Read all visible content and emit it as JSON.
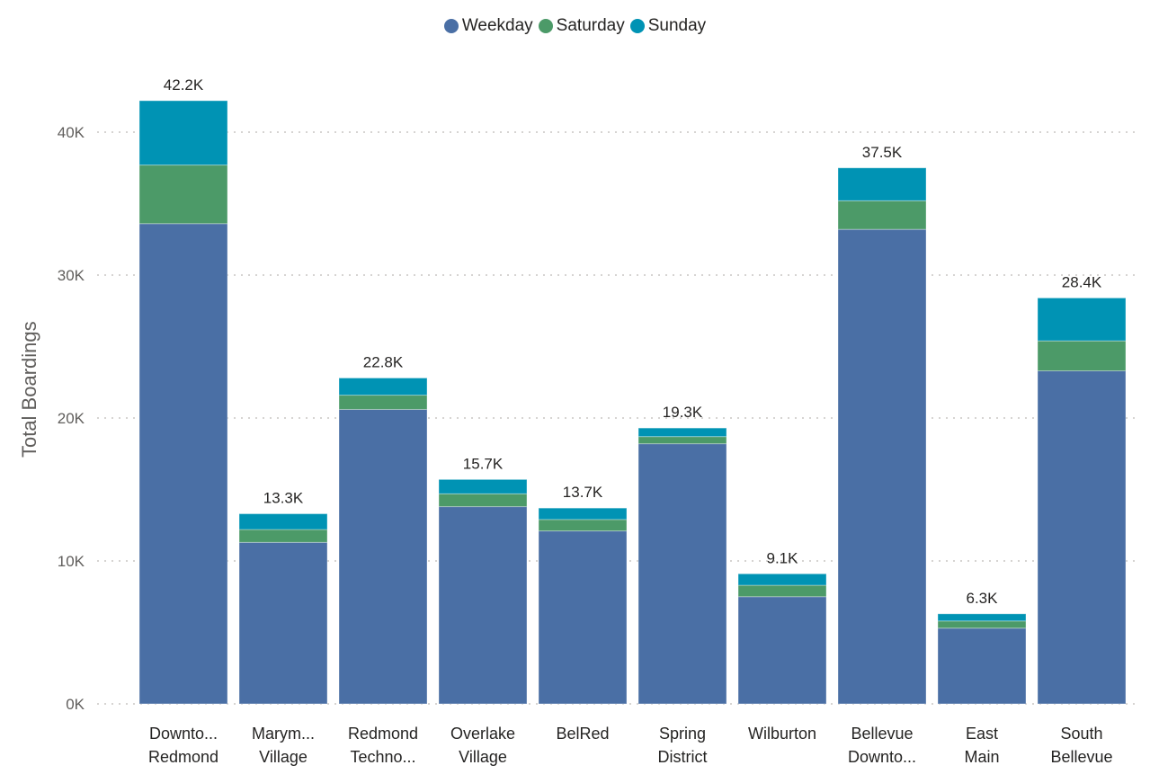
{
  "chart_data": {
    "type": "bar",
    "stacked": true,
    "title": "",
    "xlabel": "",
    "ylabel": "Total Boardings",
    "ylim": [
      0,
      44000
    ],
    "yticks": [
      0,
      10000,
      20000,
      30000,
      40000
    ],
    "ytick_labels": [
      "0K",
      "10K",
      "20K",
      "30K",
      "40K"
    ],
    "grid": true,
    "legend_position": "top-center",
    "categories": [
      [
        "Downto...",
        "Redmond"
      ],
      [
        "Marym...",
        "Village"
      ],
      [
        "Redmond",
        "Techno..."
      ],
      [
        "Overlake",
        "Village"
      ],
      [
        "BelRed"
      ],
      [
        "Spring",
        "District"
      ],
      [
        "Wilburton"
      ],
      [
        "Bellevue",
        "Downto..."
      ],
      [
        "East",
        "Main"
      ],
      [
        "South",
        "Bellevue"
      ]
    ],
    "series": [
      {
        "name": "Weekday",
        "color": "#4a6fa5",
        "values": [
          33600,
          11300,
          20600,
          13800,
          12100,
          18200,
          7500,
          33200,
          5300,
          23300
        ]
      },
      {
        "name": "Saturday",
        "color": "#4c9a68",
        "values": [
          4100,
          900,
          1000,
          900,
          800,
          500,
          800,
          2000,
          500,
          2100
        ]
      },
      {
        "name": "Sunday",
        "color": "#0093b4",
        "values": [
          4500,
          1100,
          1200,
          1000,
          800,
          600,
          800,
          2300,
          500,
          3000
        ]
      }
    ],
    "totals": [
      42200,
      13300,
      22800,
      15700,
      13700,
      19300,
      9100,
      37500,
      6300,
      28400
    ],
    "total_labels": [
      "42.2K",
      "13.3K",
      "22.8K",
      "15.7K",
      "13.7K",
      "19.3K",
      "9.1K",
      "37.5K",
      "6.3K",
      "28.4K"
    ]
  }
}
